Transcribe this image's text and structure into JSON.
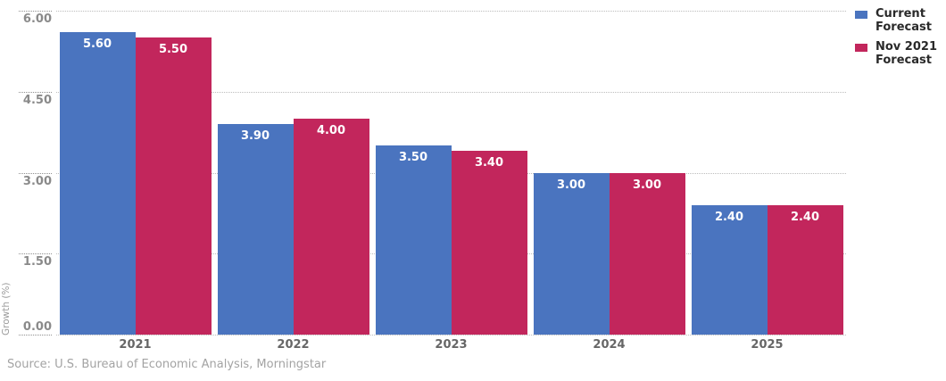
{
  "chart_data": {
    "type": "bar",
    "title": "",
    "categories": [
      "2021",
      "2022",
      "2023",
      "2024",
      "2025"
    ],
    "series": [
      {
        "name": "Current Forecast",
        "color": "#4a74bf",
        "values": [
          5.6,
          3.9,
          3.5,
          3.0,
          2.4
        ]
      },
      {
        "name": "Nov 2021 Forecast",
        "color": "#c2265c",
        "values": [
          5.5,
          4.0,
          3.4,
          3.0,
          2.4
        ]
      }
    ],
    "xlabel": "",
    "ylabel": "Growth (%)",
    "ylim": [
      0,
      6
    ],
    "yticks": [
      0,
      1.5,
      3,
      4.5,
      6
    ],
    "ytick_label_decimals": 2,
    "value_label_decimals": 2,
    "grid": "horizontal-dotted",
    "legend_position": "top-right"
  },
  "footer": {
    "source": "Source: U.S. Bureau of Economic Analysis, Morningstar"
  }
}
